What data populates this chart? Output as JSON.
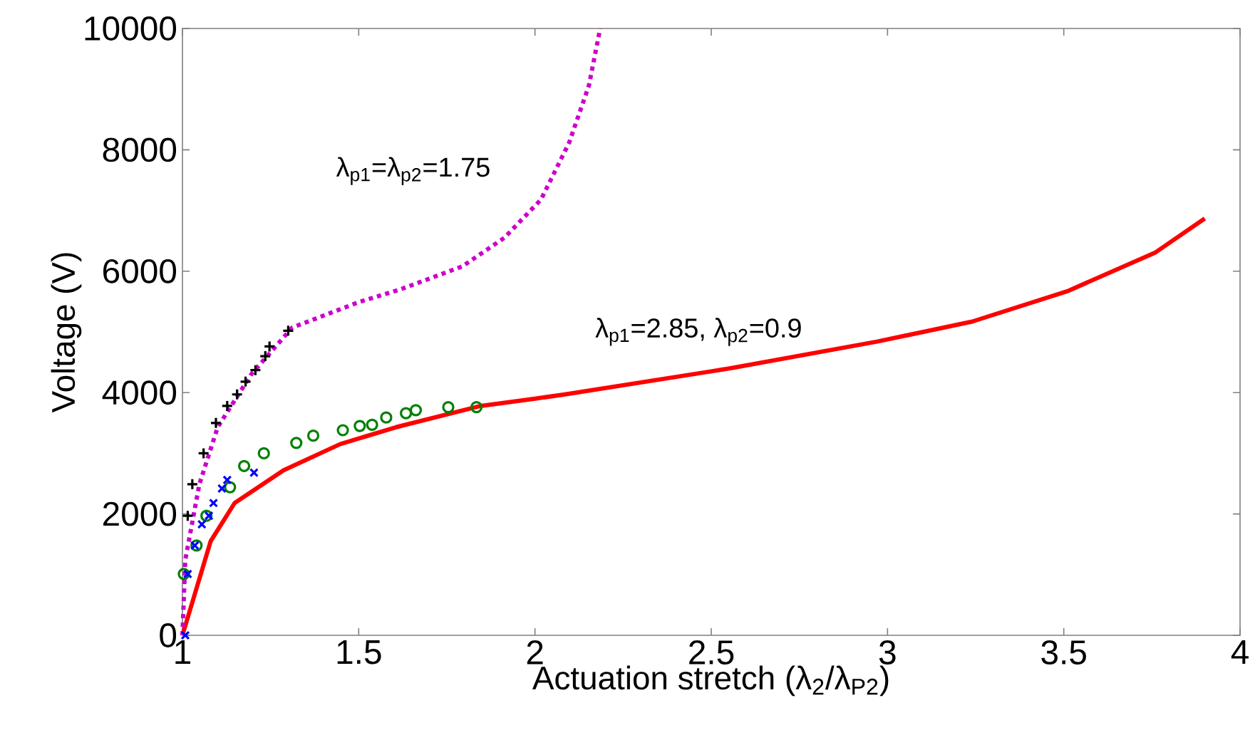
{
  "chart_data": {
    "type": "line",
    "xlabel": "Actuation stretch (λ$_{2}$/λ$_{P2}$)",
    "ylabel": "Voltage (V)",
    "xlim": [
      1,
      4
    ],
    "ylim": [
      0,
      10000
    ],
    "xticks": [
      1,
      1.5,
      2,
      2.5,
      3,
      3.5,
      4
    ],
    "yticks": [
      0,
      2000,
      4000,
      6000,
      8000,
      10000
    ],
    "grid": false,
    "series": [
      {
        "color": "#ff0000",
        "line_style": "solid",
        "marker": "none",
        "x": [
          1,
          1.08,
          1.148,
          1.287,
          1.447,
          1.606,
          1.846,
          2.0,
          2.085,
          2.5,
          2.563,
          2.97,
          3.24,
          3.51,
          3.76,
          3.9
        ],
        "values": [
          0,
          1550,
          2180,
          2720,
          3150,
          3430,
          3780,
          3900,
          3970,
          4350,
          4410,
          4840,
          5170,
          5670,
          6310,
          6870
        ]
      },
      {
        "color": "#cc00cc",
        "line_style": "dotted",
        "marker": "none",
        "x": [
          1,
          1.008,
          1.048,
          1.1,
          1.195,
          1.311,
          1.5,
          1.618,
          1.794,
          1.913,
          2.017,
          2.097,
          2.153,
          2.185
        ],
        "values": [
          0,
          1240,
          2490,
          3430,
          4300,
          5070,
          5490,
          5700,
          6080,
          6550,
          7180,
          8120,
          9060,
          10000
        ]
      },
      {
        "type": "scatter",
        "color": "#000000",
        "marker": "plus",
        "x": [
          1.015,
          1.028,
          1.06,
          1.095,
          1.127,
          1.155,
          1.179,
          1.207,
          1.235,
          1.247,
          1.3
        ],
        "values": [
          1970,
          2490,
          3000,
          3500,
          3780,
          3970,
          4180,
          4370,
          4600,
          4760,
          5020
        ]
      },
      {
        "type": "scatter",
        "color": "#008000",
        "marker": "circle",
        "x": [
          1.004,
          1.04,
          1.068,
          1.135,
          1.175,
          1.231,
          1.323,
          1.371,
          1.455,
          1.503,
          1.538,
          1.578,
          1.634,
          1.662,
          1.754,
          1.834
        ],
        "values": [
          1010,
          1480,
          1970,
          2440,
          2790,
          3000,
          3170,
          3290,
          3380,
          3450,
          3470,
          3590,
          3660,
          3710,
          3760,
          3760
        ]
      },
      {
        "type": "scatter",
        "color": "#0000ff",
        "marker": "cross",
        "x": [
          1.008,
          1.015,
          1.035,
          1.055,
          1.075,
          1.088,
          1.112,
          1.127,
          1.203
        ],
        "values": [
          0,
          1010,
          1480,
          1830,
          1970,
          2180,
          2420,
          2560,
          2680
        ]
      }
    ],
    "annotations": [
      "λ$_{p1}$=λ$_{p2}$=1.75",
      "λ$_{p1}$=2.85, λ$_{p2}$=0.9"
    ]
  }
}
